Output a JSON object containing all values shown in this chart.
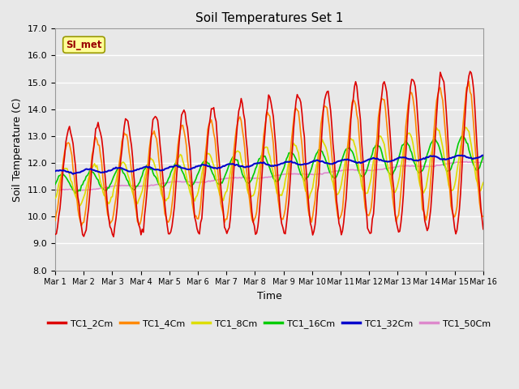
{
  "title": "Soil Temperatures Set 1",
  "xlabel": "Time",
  "ylabel": "Soil Temperature (C)",
  "ylim": [
    8.0,
    17.0
  ],
  "yticks": [
    8.0,
    9.0,
    10.0,
    11.0,
    12.0,
    13.0,
    14.0,
    15.0,
    16.0,
    17.0
  ],
  "xtick_labels": [
    "Mar 1",
    "Mar 2",
    "Mar 3",
    "Mar 4",
    "Mar 5",
    "Mar 6",
    "Mar 7",
    "Mar 8",
    "Mar 9",
    "Mar 10",
    "Mar 11",
    "Mar 12",
    "Mar 13",
    "Mar 14",
    "Mar 15",
    "Mar 16"
  ],
  "colors": {
    "TC1_2Cm": "#DD0000",
    "TC1_4Cm": "#FF8800",
    "TC1_8Cm": "#DDDD00",
    "TC1_16Cm": "#00CC00",
    "TC1_32Cm": "#0000CC",
    "TC1_50Cm": "#DD88CC"
  },
  "legend_label": "SI_met",
  "bg_color": "#E8E8E8",
  "grid_color": "#FFFFFF",
  "lw": 1.2
}
